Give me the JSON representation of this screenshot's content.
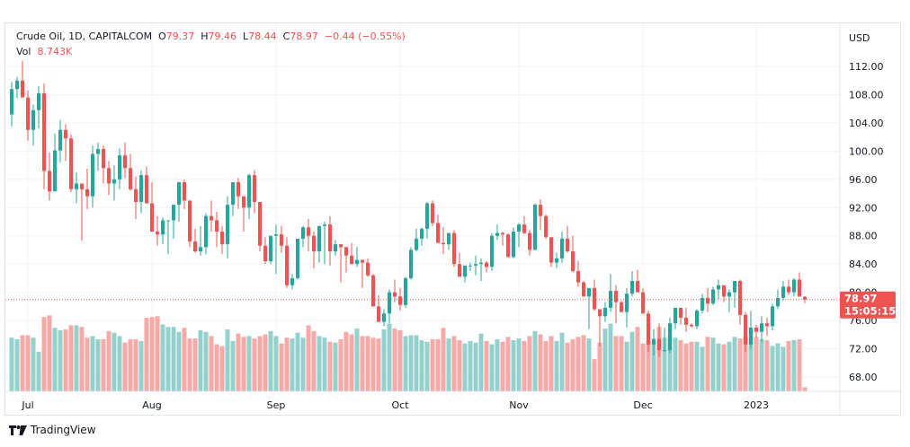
{
  "legend": {
    "symbol": "Crude Oil, 1D, CAPITALCOM",
    "open_label": "O",
    "open": "79.37",
    "high_label": "H",
    "high": "79.46",
    "low_label": "L",
    "low": "78.44",
    "close_label": "C",
    "close": "78.97",
    "change": "−0.44 (−0.55%)",
    "vol_label": "Vol",
    "vol": "8.743K"
  },
  "price_label": {
    "price": "78.97",
    "countdown": "15:05:15"
  },
  "brand": {
    "name": "TradingView"
  },
  "colors": {
    "up": "#26a69a",
    "down": "#ef5350",
    "up_vol": "#93d2cc",
    "down_vol": "#f7a9a7",
    "grid": "#f0f3fa",
    "axis_text": "#131722"
  },
  "chart_data": {
    "type": "candlestick",
    "title": "Crude Oil, 1D, CAPITALCOM",
    "currency": "USD",
    "ylim": [
      66,
      114
    ],
    "y_ticks": [
      112,
      108,
      104,
      100,
      96,
      92,
      88,
      84,
      80,
      76,
      72,
      68
    ],
    "y_tick_labels": [
      "112.00",
      "108.00",
      "104.00",
      "100.00",
      "96.00",
      "92.00",
      "88.00",
      "84.00",
      "80.00",
      "76.00",
      "72.00",
      "68.00"
    ],
    "x_tick_labels": [
      {
        "label": "Jul",
        "index": 3
      },
      {
        "label": "Aug",
        "index": 26
      },
      {
        "label": "Sep",
        "index": 49
      },
      {
        "label": "Oct",
        "index": 72
      },
      {
        "label": "Nov",
        "index": 94
      },
      {
        "label": "Dec",
        "index": 117
      },
      {
        "label": "2023",
        "index": 138
      }
    ],
    "last_price": 78.97,
    "grid": true,
    "candles": [
      [
        105.2,
        109.8,
        103.5,
        108.8
      ],
      [
        108.8,
        110.5,
        107.5,
        110.0
      ],
      [
        110.0,
        112.8,
        108.6,
        107.6
      ],
      [
        107.6,
        108.6,
        101.5,
        103.0
      ],
      [
        103.0,
        106.6,
        100.8,
        105.8
      ],
      [
        105.8,
        109.2,
        103.2,
        108.2
      ],
      [
        108.2,
        109.6,
        94.6,
        97.2
      ],
      [
        97.2,
        99.8,
        93.0,
        94.3
      ],
      [
        94.3,
        102.5,
        94.6,
        100.1
      ],
      [
        100.1,
        104.4,
        98.4,
        103.0
      ],
      [
        103.0,
        103.8,
        98.6,
        101.8
      ],
      [
        101.8,
        102.4,
        94.2,
        94.6
      ],
      [
        94.6,
        97.0,
        92.6,
        95.4
      ],
      [
        95.4,
        94.0,
        87.3,
        94.6
      ],
      [
        94.6,
        97.5,
        91.8,
        93.6
      ],
      [
        93.6,
        100.8,
        92.0,
        99.6
      ],
      [
        99.6,
        101.2,
        97.2,
        100.3
      ],
      [
        100.3,
        100.8,
        95.4,
        97.6
      ],
      [
        97.6,
        98.6,
        93.8,
        95.4
      ],
      [
        95.4,
        98.0,
        93.0,
        96.0
      ],
      [
        96.0,
        100.4,
        94.6,
        99.4
      ],
      [
        99.4,
        101.2,
        96.2,
        97.6
      ],
      [
        97.6,
        99.6,
        94.4,
        94.6
      ],
      [
        94.6,
        96.4,
        90.4,
        92.8
      ],
      [
        92.8,
        97.3,
        91.2,
        96.6
      ],
      [
        96.6,
        97.8,
        93.4,
        92.6
      ],
      [
        92.6,
        95.6,
        89.2,
        88.6
      ],
      [
        88.6,
        90.8,
        86.6,
        88.2
      ],
      [
        88.2,
        90.6,
        86.8,
        90.2
      ],
      [
        90.2,
        90.0,
        85.4,
        90.2
      ],
      [
        90.2,
        92.2,
        87.6,
        92.4
      ],
      [
        92.4,
        94.5,
        90.0,
        95.6
      ],
      [
        95.6,
        96.0,
        91.8,
        93.0
      ],
      [
        93.0,
        92.4,
        86.4,
        87.2
      ],
      [
        87.2,
        89.0,
        85.6,
        85.8
      ],
      [
        85.8,
        89.4,
        85.2,
        86.4
      ],
      [
        86.4,
        91.2,
        85.4,
        90.8
      ],
      [
        90.8,
        93.0,
        88.6,
        90.2
      ],
      [
        90.2,
        91.4,
        86.4,
        88.6
      ],
      [
        88.6,
        89.4,
        85.4,
        86.8
      ],
      [
        86.8,
        93.6,
        84.8,
        92.4
      ],
      [
        92.4,
        95.4,
        90.8,
        95.6
      ],
      [
        95.6,
        96.2,
        91.8,
        93.6
      ],
      [
        93.6,
        93.0,
        88.6,
        92.0
      ],
      [
        92.0,
        96.8,
        90.4,
        96.6
      ],
      [
        96.6,
        97.3,
        91.2,
        92.8
      ],
      [
        92.8,
        92.4,
        85.8,
        86.6
      ],
      [
        86.6,
        87.8,
        84.0,
        84.4
      ],
      [
        84.4,
        88.0,
        84.0,
        88.0
      ],
      [
        88.0,
        89.6,
        82.6,
        88.2
      ],
      [
        88.2,
        89.4,
        85.6,
        86.6
      ],
      [
        86.6,
        87.8,
        80.6,
        81.0
      ],
      [
        81.0,
        82.6,
        80.4,
        82.0
      ],
      [
        82.0,
        87.4,
        81.8,
        87.6
      ],
      [
        87.6,
        89.4,
        86.4,
        89.2
      ],
      [
        89.2,
        90.4,
        85.8,
        88.0
      ],
      [
        88.0,
        88.6,
        83.4,
        85.8
      ],
      [
        85.8,
        89.2,
        84.2,
        89.4
      ],
      [
        89.4,
        90.0,
        84.0,
        89.6
      ],
      [
        89.6,
        90.8,
        83.8,
        85.8
      ],
      [
        85.8,
        87.4,
        85.2,
        86.8
      ],
      [
        86.8,
        86.4,
        81.4,
        86.4
      ],
      [
        86.4,
        86.4,
        82.8,
        85.2
      ],
      [
        85.2,
        87.0,
        84.4,
        84.0
      ],
      [
        84.0,
        86.4,
        83.6,
        84.6
      ],
      [
        84.6,
        84.4,
        80.6,
        84.2
      ],
      [
        84.2,
        84.8,
        82.2,
        82.4
      ],
      [
        82.4,
        82.6,
        78.4,
        78.0
      ],
      [
        78.0,
        79.6,
        75.8,
        75.8
      ],
      [
        75.8,
        77.6,
        75.2,
        77.0
      ],
      [
        77.0,
        80.4,
        75.6,
        80.0
      ],
      [
        80.0,
        81.8,
        78.6,
        79.4
      ],
      [
        79.4,
        80.6,
        77.4,
        78.2
      ],
      [
        78.2,
        82.2,
        77.8,
        82.0
      ],
      [
        82.0,
        86.4,
        81.8,
        86.0
      ],
      [
        86.0,
        89.0,
        85.8,
        87.6
      ],
      [
        87.6,
        89.2,
        86.6,
        89.0
      ],
      [
        89.0,
        92.8,
        87.6,
        92.6
      ],
      [
        92.6,
        93.0,
        89.4,
        89.8
      ],
      [
        89.8,
        91.0,
        88.4,
        87.0
      ],
      [
        87.0,
        89.2,
        85.4,
        86.8
      ],
      [
        86.8,
        88.2,
        86.0,
        88.4
      ],
      [
        88.4,
        88.8,
        83.6,
        84.0
      ],
      [
        84.0,
        85.6,
        82.4,
        82.2
      ],
      [
        82.2,
        83.6,
        81.4,
        83.8
      ],
      [
        83.8,
        84.2,
        83.0,
        83.8
      ],
      [
        83.8,
        85.2,
        82.4,
        84.0
      ],
      [
        84.0,
        84.8,
        81.6,
        84.2
      ],
      [
        84.2,
        84.4,
        82.8,
        83.6
      ],
      [
        83.6,
        88.4,
        83.0,
        88.0
      ],
      [
        88.0,
        89.6,
        87.4,
        88.4
      ],
      [
        88.4,
        88.6,
        86.6,
        88.2
      ],
      [
        88.2,
        88.4,
        85.6,
        85.0
      ],
      [
        85.0,
        89.2,
        84.8,
        88.6
      ],
      [
        88.6,
        89.8,
        86.4,
        89.6
      ],
      [
        89.6,
        90.8,
        88.2,
        88.4
      ],
      [
        88.4,
        88.8,
        85.2,
        86.0
      ],
      [
        86.0,
        92.6,
        86.0,
        92.4
      ],
      [
        92.4,
        93.2,
        88.8,
        90.8
      ],
      [
        90.8,
        91.0,
        87.6,
        87.8
      ],
      [
        87.8,
        87.0,
        83.6,
        84.2
      ],
      [
        84.2,
        85.6,
        83.4,
        84.8
      ],
      [
        84.8,
        88.6,
        84.2,
        87.6
      ],
      [
        87.6,
        89.4,
        85.6,
        85.8
      ],
      [
        85.8,
        88.0,
        82.8,
        83.0
      ],
      [
        83.0,
        84.4,
        80.8,
        81.4
      ],
      [
        81.4,
        81.6,
        79.6,
        79.4
      ],
      [
        79.4,
        80.6,
        74.8,
        80.6
      ],
      [
        80.6,
        81.8,
        77.4,
        77.6
      ],
      [
        77.6,
        77.0,
        72.4,
        76.6
      ],
      [
        76.6,
        78.6,
        75.8,
        77.8
      ],
      [
        77.8,
        82.6,
        77.2,
        80.2
      ],
      [
        80.2,
        81.0,
        75.6,
        78.6
      ],
      [
        78.6,
        78.8,
        77.2,
        77.2
      ],
      [
        77.2,
        80.6,
        75.0,
        79.8
      ],
      [
        79.8,
        83.0,
        79.4,
        81.6
      ],
      [
        81.6,
        83.2,
        80.2,
        80.0
      ],
      [
        80.0,
        80.6,
        77.2,
        77.0
      ],
      [
        77.0,
        77.4,
        71.6,
        72.6
      ],
      [
        72.6,
        74.8,
        71.0,
        73.4
      ],
      [
        73.4,
        75.6,
        70.8,
        71.8
      ],
      [
        71.8,
        75.0,
        71.6,
        71.8
      ],
      [
        71.8,
        76.4,
        71.4,
        75.6
      ],
      [
        75.6,
        77.2,
        74.8,
        77.8
      ],
      [
        77.8,
        77.6,
        75.4,
        76.4
      ],
      [
        76.4,
        77.8,
        74.4,
        75.4
      ],
      [
        75.4,
        75.6,
        75.0,
        75.2
      ],
      [
        75.2,
        77.6,
        74.8,
        77.4
      ],
      [
        77.4,
        79.8,
        77.0,
        79.2
      ],
      [
        79.2,
        80.6,
        77.2,
        78.4
      ],
      [
        78.4,
        80.8,
        78.2,
        80.4
      ],
      [
        80.4,
        81.8,
        79.0,
        81.0
      ],
      [
        81.0,
        80.6,
        78.6,
        79.4
      ],
      [
        79.4,
        80.4,
        77.2,
        80.0
      ],
      [
        80.0,
        81.4,
        77.8,
        81.6
      ],
      [
        81.6,
        81.8,
        75.4,
        76.8
      ],
      [
        76.8,
        77.2,
        71.6,
        72.6
      ],
      [
        72.6,
        77.4,
        72.0,
        75.0
      ],
      [
        75.0,
        75.4,
        73.6,
        74.4
      ],
      [
        74.4,
        76.6,
        73.0,
        75.6
      ],
      [
        75.6,
        76.4,
        73.8,
        75.2
      ],
      [
        75.2,
        78.4,
        74.6,
        78.0
      ],
      [
        78.0,
        80.4,
        77.6,
        79.2
      ],
      [
        79.2,
        81.6,
        78.8,
        80.8
      ],
      [
        80.8,
        81.8,
        79.6,
        80.0
      ],
      [
        80.0,
        82.0,
        79.4,
        81.8
      ],
      [
        81.8,
        82.8,
        80.0,
        79.4
      ],
      [
        79.37,
        79.46,
        78.44,
        78.97
      ]
    ],
    "volume": [
      65,
      63,
      68,
      68,
      65,
      48,
      90,
      92,
      77,
      74,
      75,
      80,
      80,
      78,
      65,
      67,
      63,
      63,
      73,
      71,
      67,
      59,
      63,
      63,
      61,
      89,
      90,
      91,
      81,
      78,
      78,
      72,
      77,
      64,
      64,
      74,
      72,
      67,
      57,
      55,
      75,
      61,
      70,
      66,
      67,
      64,
      67,
      69,
      73,
      67,
      58,
      65,
      64,
      71,
      65,
      80,
      73,
      67,
      65,
      60,
      59,
      63,
      72,
      69,
      76,
      67,
      67,
      65,
      64,
      75,
      82,
      76,
      74,
      67,
      68,
      68,
      62,
      60,
      63,
      63,
      77,
      64,
      67,
      62,
      58,
      61,
      59,
      70,
      61,
      57,
      63,
      60,
      66,
      62,
      64,
      61,
      67,
      73,
      69,
      61,
      67,
      61,
      71,
      59,
      63,
      66,
      68,
      64,
      39,
      59,
      76,
      82,
      67,
      67,
      60,
      72,
      78,
      58,
      61,
      60,
      78,
      65,
      68,
      65,
      62,
      58,
      60,
      60,
      54,
      66,
      65,
      58,
      57,
      60,
      66,
      64,
      67,
      60,
      66,
      63,
      62,
      55,
      58,
      54,
      61,
      62,
      63,
      5
    ],
    "volume_axis_visible": false
  }
}
